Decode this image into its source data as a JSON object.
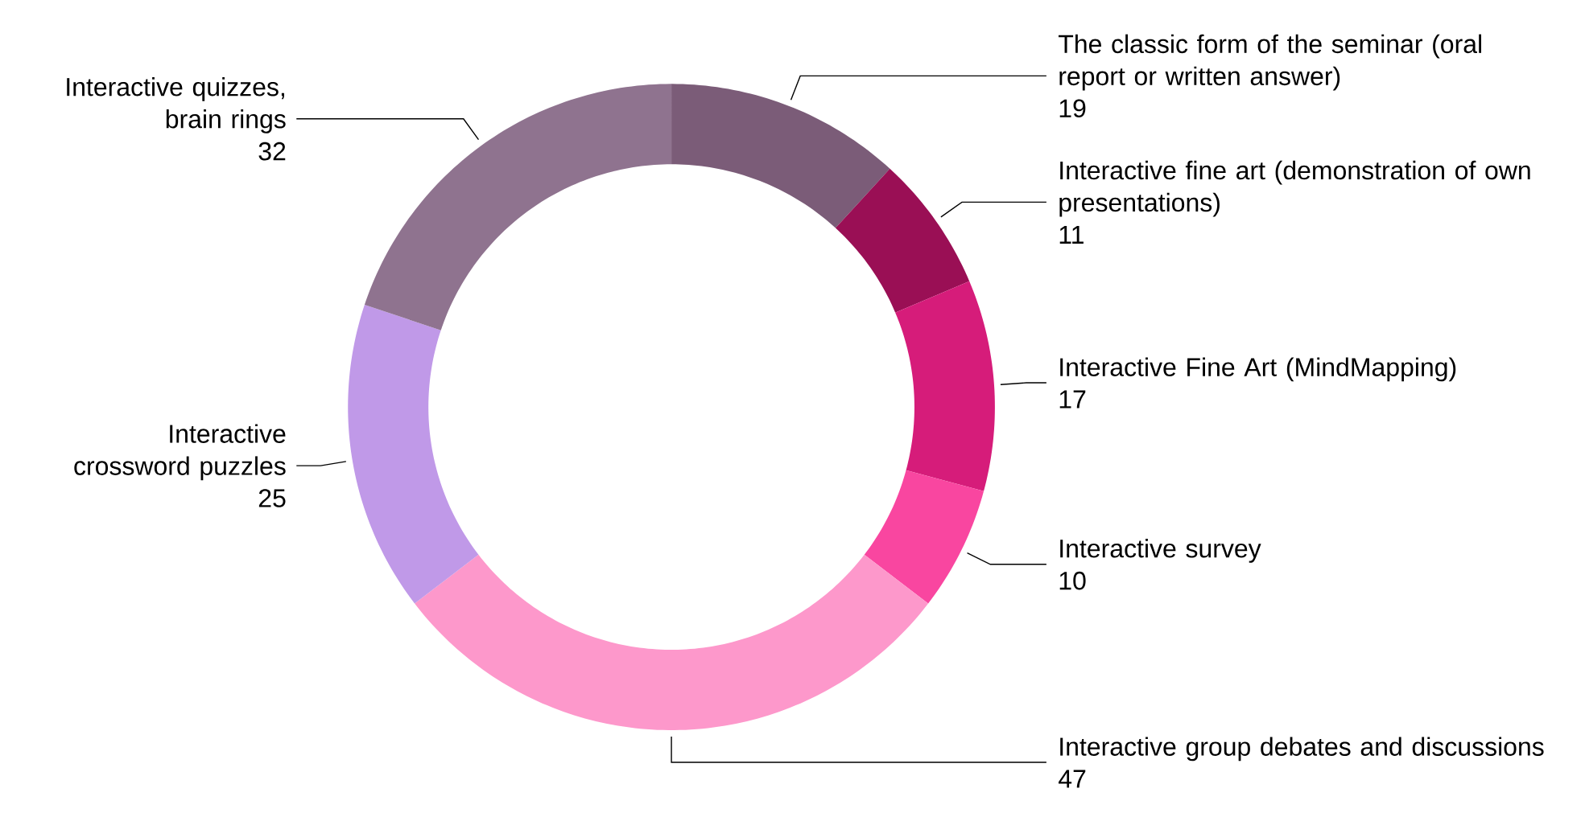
{
  "chart_data": {
    "type": "donut",
    "categories": [
      "The classic form of the seminar (oral report or written answer)",
      "Interactive fine art (demonstration of own presentations)",
      "Interactive Fine Art (MindMapping)",
      "Interactive survey",
      "Interactive group debates and discussions",
      "Interactive crossword puzzles",
      "Interactive quizzes, brain rings"
    ],
    "values": [
      19,
      11,
      17,
      10,
      47,
      25,
      32
    ],
    "colors": [
      "#7b5c78",
      "#9a0f55",
      "#d61c7a",
      "#f946a0",
      "#fd98cb",
      "#c099e8",
      "#8f738f"
    ],
    "data_labels": true
  }
}
